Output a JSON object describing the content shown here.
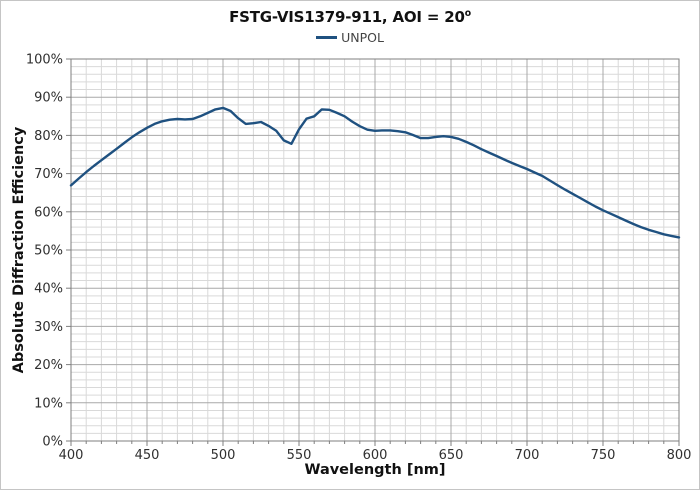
{
  "chart": {
    "title_main": "FSTG-VIS1379-911, AOI = 20",
    "title_degree": "o",
    "legend": {
      "label": "UNPOL"
    },
    "colors": {
      "series_line": "#1f5180",
      "minor_grid": "#d9d9d9",
      "major_grid": "#a8a8a8",
      "axis": "#7f7f7f",
      "tick_text": "#303030",
      "title_text": "#111111",
      "legend_text": "#444444"
    }
  },
  "chart_data": {
    "type": "line",
    "title": "FSTG-VIS1379-911, AOI = 20°",
    "legend": [
      "UNPOL"
    ],
    "legend_position": "top",
    "grid": {
      "on": true,
      "x_minor_step": 10,
      "y_minor_step": 2
    },
    "x_axis": {
      "label": "Wavelength [nm]",
      "min": 400,
      "max": 800,
      "tick_values": [
        400,
        450,
        500,
        550,
        600,
        650,
        700,
        750,
        800
      ],
      "tick_labels": [
        "400",
        "450",
        "500",
        "550",
        "600",
        "650",
        "700",
        "750",
        "800"
      ]
    },
    "y_axis": {
      "label": "Absolute Diffraction Efficiency",
      "min": 0,
      "max": 100,
      "tick_values": [
        0,
        10,
        20,
        30,
        40,
        50,
        60,
        70,
        80,
        90,
        100
      ],
      "tick_labels": [
        "0%",
        "10%",
        "20%",
        "30%",
        "40%",
        "50%",
        "60%",
        "70%",
        "80%",
        "90%",
        "100%"
      ]
    },
    "series": [
      {
        "name": "UNPOL",
        "color": "#1f5180",
        "x": [
          400,
          405,
          410,
          415,
          420,
          425,
          430,
          435,
          440,
          445,
          450,
          455,
          460,
          465,
          470,
          475,
          480,
          485,
          490,
          495,
          500,
          505,
          510,
          515,
          520,
          525,
          530,
          535,
          540,
          545,
          550,
          555,
          560,
          565,
          570,
          575,
          580,
          585,
          590,
          595,
          600,
          605,
          610,
          615,
          620,
          625,
          630,
          635,
          640,
          645,
          650,
          655,
          660,
          665,
          670,
          675,
          680,
          685,
          690,
          695,
          700,
          705,
          710,
          715,
          720,
          725,
          730,
          735,
          740,
          745,
          750,
          755,
          760,
          765,
          770,
          775,
          780,
          785,
          790,
          795,
          800
        ],
        "y": [
          66.9,
          68.7,
          70.4,
          72.0,
          73.5,
          75.0,
          76.5,
          78.0,
          79.5,
          80.8,
          82.0,
          83.0,
          83.7,
          84.1,
          84.3,
          84.2,
          84.3,
          85.0,
          85.9,
          86.8,
          87.2,
          86.4,
          84.5,
          83.0,
          83.2,
          83.5,
          82.5,
          81.2,
          78.7,
          77.8,
          81.6,
          84.4,
          85.0,
          86.8,
          86.7,
          85.9,
          85.0,
          83.6,
          82.4,
          81.5,
          81.2,
          81.3,
          81.3,
          81.1,
          80.8,
          80.1,
          79.3,
          79.3,
          79.6,
          79.8,
          79.6,
          79.1,
          78.3,
          77.4,
          76.4,
          75.5,
          74.6,
          73.7,
          72.8,
          72.0,
          71.2,
          70.3,
          69.4,
          68.2,
          67.0,
          65.8,
          64.7,
          63.6,
          62.5,
          61.4,
          60.4,
          59.5,
          58.6,
          57.7,
          56.8,
          56.0,
          55.3,
          54.7,
          54.1,
          53.7,
          53.3
        ]
      }
    ]
  }
}
